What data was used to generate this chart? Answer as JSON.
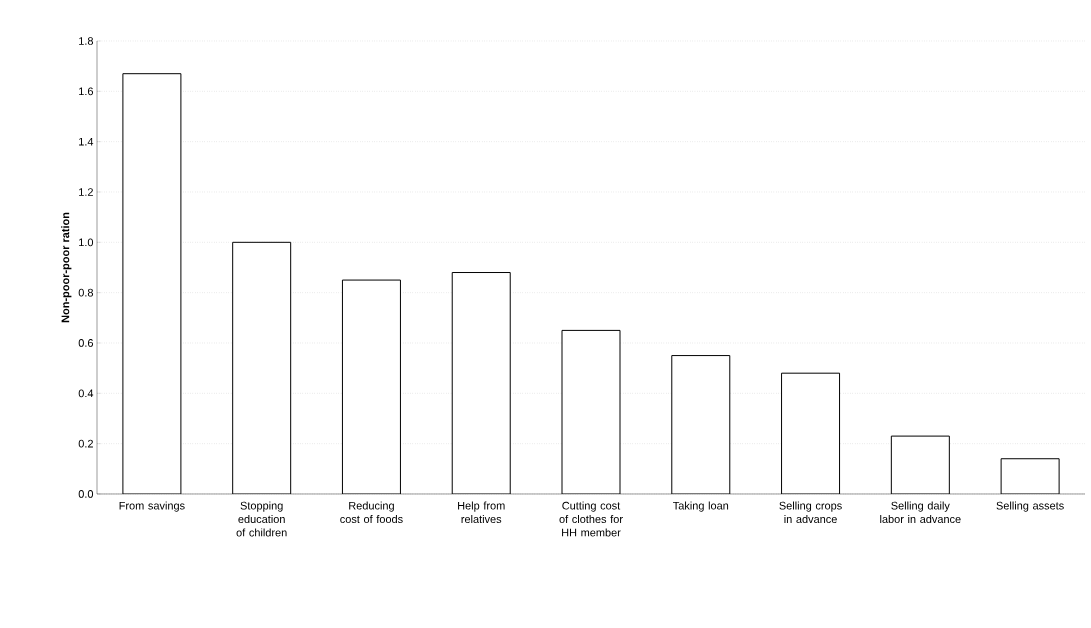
{
  "chart_data": {
    "type": "bar",
    "ylabel": "Non-poor-poor ration",
    "categories": [
      "From savings",
      "Stopping education of children",
      "Reducing cost of foods",
      "Help from relatives",
      "Cutting cost of clothes for HH member",
      "Taking loan",
      "Selling crops in advance",
      "Selling daily labor in advance",
      "Selling assets"
    ],
    "values": [
      1.67,
      1.0,
      0.85,
      0.88,
      0.65,
      0.55,
      0.48,
      0.23,
      0.14
    ],
    "color": "#ffffff",
    "ylim": [
      0,
      1.8
    ],
    "yticks": [
      {
        "value": 0,
        "label": "0.0"
      },
      {
        "value": 0.2,
        "label": "0.2"
      },
      {
        "value": 0.4,
        "label": "0.4"
      },
      {
        "value": 0.6,
        "label": "0.6"
      },
      {
        "value": 0.8,
        "label": "0.8"
      },
      {
        "value": 1.0,
        "label": "1.0"
      },
      {
        "value": 1.2,
        "label": "1.2"
      },
      {
        "value": 1.4,
        "label": "1.4"
      },
      {
        "value": 1.6,
        "label": "1.6"
      },
      {
        "value": 1.8,
        "label": "1.8"
      }
    ],
    "grid": "y"
  }
}
